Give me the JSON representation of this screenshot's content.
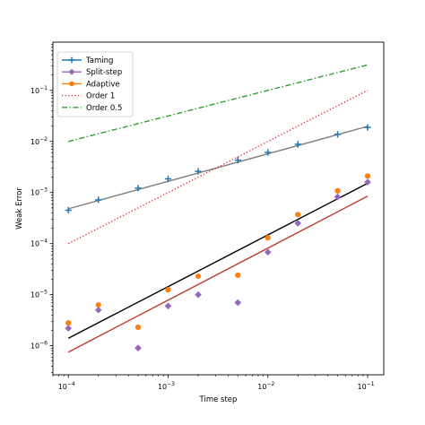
{
  "chart_data": {
    "type": "line",
    "title": "",
    "xlabel": "Time step",
    "ylabel": "Weak Error",
    "xscale": "log",
    "yscale": "log",
    "xlim": [
      7e-05,
      0.145
    ],
    "ylim": [
      2.7e-07,
      0.88
    ],
    "xticks": [
      {
        "value": 0.0001,
        "base": "10",
        "exp": "−4"
      },
      {
        "value": 0.001,
        "base": "10",
        "exp": "−3"
      },
      {
        "value": 0.01,
        "base": "10",
        "exp": "−2"
      },
      {
        "value": 0.1,
        "base": "10",
        "exp": "−1"
      }
    ],
    "yticks": [
      {
        "value": 1e-06,
        "base": "10",
        "exp": "−6"
      },
      {
        "value": 1e-05,
        "base": "10",
        "exp": "−5"
      },
      {
        "value": 0.0001,
        "base": "10",
        "exp": "−4"
      },
      {
        "value": 0.001,
        "base": "10",
        "exp": "−3"
      },
      {
        "value": 0.01,
        "base": "10",
        "exp": "−2"
      },
      {
        "value": 0.1,
        "base": "10",
        "exp": "−1"
      }
    ],
    "x": [
      0.0001,
      0.0002,
      0.0005,
      0.001,
      0.002,
      0.005,
      0.01,
      0.02,
      0.05,
      0.1
    ],
    "series": [
      {
        "name": "Taming",
        "color": "#1f77b4",
        "marker": "plus",
        "values": [
          0.00045,
          0.00072,
          0.00122,
          0.00185,
          0.0026,
          0.0043,
          0.0061,
          0.0088,
          0.0138,
          0.0188
        ]
      },
      {
        "name": "Split-step",
        "color": "#9467bd",
        "marker": "diamond",
        "values": [
          2.2e-06,
          5e-06,
          9e-07,
          6e-06,
          1e-05,
          7e-06,
          6.8e-05,
          0.00025,
          0.00082,
          0.0016
        ]
      },
      {
        "name": "Adaptive",
        "color": "#ff7f0e",
        "marker": "circle",
        "values": [
          2.8e-06,
          6.3e-06,
          2.3e-06,
          1.25e-05,
          2.3e-05,
          2.4e-05,
          0.00013,
          0.00037,
          0.00108,
          0.0021
        ]
      },
      {
        "name": "Order 1",
        "color": "#d62728",
        "style": "dotted",
        "values": [
          0.0001,
          0.0002,
          0.0005,
          0.001,
          0.002,
          0.005,
          0.01,
          0.02,
          0.05,
          0.1
        ]
      },
      {
        "name": "Order 0.5",
        "color": "#2ca02c",
        "style": "dashdot",
        "values": [
          0.01,
          0.01414,
          0.02236,
          0.03162,
          0.04472,
          0.07071,
          0.1,
          0.1414,
          0.2236,
          0.3162
        ]
      }
    ],
    "fit_lines": [
      {
        "color": "#7f7f7f",
        "x": [
          0.0001,
          0.1
        ],
        "y": [
          0.00048,
          0.0198
        ]
      },
      {
        "color": "#000000",
        "x": [
          0.0001,
          0.1
        ],
        "y": [
          1.4e-06,
          0.00152
        ]
      },
      {
        "color": "#c0392b",
        "x": [
          0.0001,
          0.1
        ],
        "y": [
          7.5e-07,
          0.00085
        ]
      }
    ],
    "grid": false,
    "legend_position": "top-left"
  }
}
